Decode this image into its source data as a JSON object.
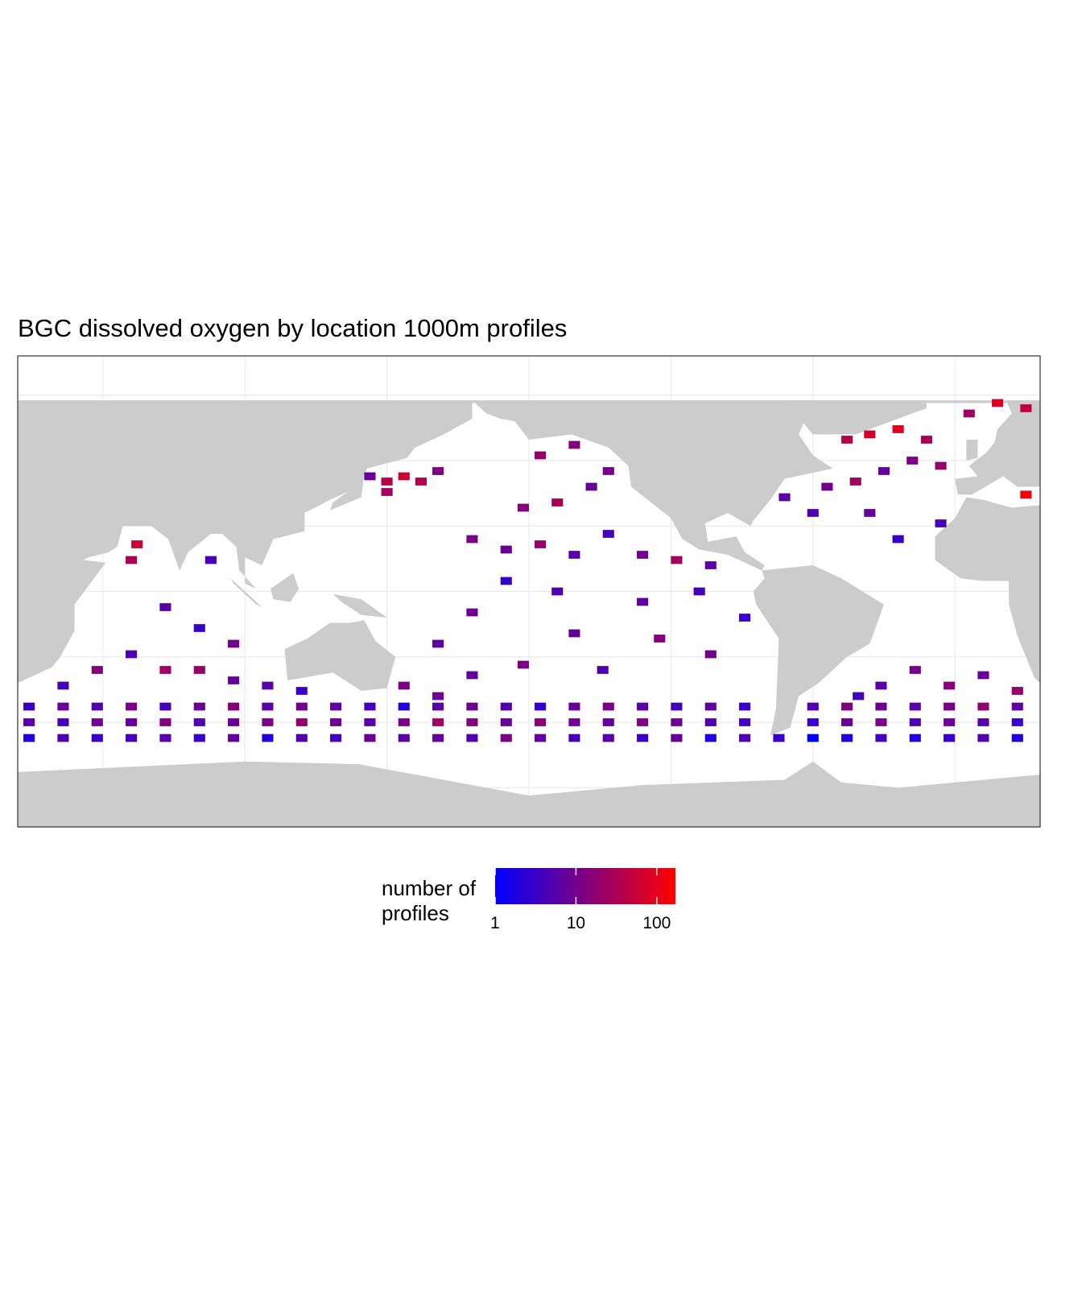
{
  "chart_data": {
    "type": "tile",
    "title": "BGC dissolved oxygen by location 1000m profiles",
    "legend_title": "number of profiles",
    "log_scale": true,
    "grid": true,
    "color_low": "#0000ff",
    "color_high": "#ff0000",
    "land_color": "#cccccc",
    "xlim": [
      20,
      380
    ],
    "ylim": [
      -90,
      90
    ],
    "xticks": [
      50,
      100,
      150,
      200,
      250,
      300,
      350
    ],
    "yticks": [
      -75,
      -50,
      -25,
      0,
      25,
      50,
      75
    ],
    "colorlim": [
      1,
      170
    ],
    "colorticks": [
      1,
      10,
      100
    ],
    "x": [
      24,
      36,
      48,
      60,
      72,
      84,
      96,
      108,
      120,
      132,
      144,
      156,
      168,
      180,
      192,
      204,
      216,
      228,
      240,
      252,
      264,
      276,
      300,
      312,
      324,
      336,
      348,
      360,
      372,
      24,
      36,
      48,
      60,
      72,
      84,
      96,
      108,
      120,
      132,
      144,
      156,
      168,
      180,
      192,
      204,
      216,
      228,
      240,
      252,
      264,
      276,
      300,
      312,
      324,
      336,
      348,
      360,
      372,
      24,
      36,
      48,
      60,
      72,
      84,
      96,
      108,
      120,
      132,
      144,
      156,
      168,
      180,
      192,
      204,
      216,
      228,
      240,
      252,
      264,
      276,
      288,
      300,
      312,
      324,
      336,
      348,
      360,
      372,
      150,
      156,
      162,
      150,
      168,
      144,
      204,
      216,
      228,
      222,
      198,
      210,
      180,
      192,
      204,
      216,
      228,
      240,
      252,
      264,
      192,
      210,
      240,
      260,
      180,
      168,
      216,
      246,
      264,
      276,
      198,
      226,
      180,
      62,
      60,
      88,
      72,
      84,
      96,
      60,
      48,
      72,
      84,
      96,
      36,
      108,
      120,
      305,
      315,
      325,
      312,
      320,
      330,
      340,
      335,
      345,
      290,
      300,
      320,
      330,
      345,
      355,
      365,
      375,
      375,
      336,
      348,
      360,
      324,
      372,
      316,
      156,
      168
    ],
    "y": [
      -44,
      -44,
      -44,
      -44,
      -44,
      -44,
      -44,
      -44,
      -44,
      -44,
      -44,
      -44,
      -44,
      -44,
      -44,
      -44,
      -44,
      -44,
      -44,
      -44,
      -44,
      -44,
      -44,
      -44,
      -44,
      -44,
      -44,
      -44,
      -44,
      -50,
      -50,
      -50,
      -50,
      -50,
      -50,
      -50,
      -50,
      -50,
      -50,
      -50,
      -50,
      -50,
      -50,
      -50,
      -50,
      -50,
      -50,
      -50,
      -50,
      -50,
      -50,
      -50,
      -50,
      -50,
      -50,
      -50,
      -50,
      -50,
      -56,
      -56,
      -56,
      -56,
      -56,
      -56,
      -56,
      -56,
      -56,
      -56,
      -56,
      -56,
      -56,
      -56,
      -56,
      -56,
      -56,
      -56,
      -56,
      -56,
      -56,
      -56,
      -56,
      -56,
      -56,
      -56,
      -56,
      -56,
      -56,
      -56,
      42,
      44,
      42,
      38,
      46,
      44,
      52,
      56,
      46,
      40,
      32,
      34,
      20,
      16,
      18,
      14,
      22,
      14,
      12,
      10,
      4,
      0,
      -4,
      0,
      -8,
      -20,
      -16,
      -18,
      -24,
      -10,
      -28,
      -30,
      -32,
      18,
      12,
      12,
      -6,
      -14,
      -20,
      -24,
      -30,
      -30,
      -30,
      -34,
      -36,
      -36,
      -38,
      40,
      42,
      46,
      58,
      60,
      62,
      58,
      50,
      48,
      36,
      30,
      30,
      20,
      26,
      68,
      72,
      70,
      37,
      -30,
      -36,
      -32,
      -36,
      -38,
      -40,
      -36,
      -40
    ],
    "values": [
      3,
      8,
      5,
      12,
      4,
      9,
      15,
      6,
      10,
      7,
      4,
      2,
      6,
      9,
      5,
      3,
      8,
      12,
      6,
      4,
      7,
      3,
      5,
      14,
      9,
      6,
      11,
      18,
      7,
      6,
      4,
      10,
      7,
      14,
      5,
      8,
      12,
      20,
      9,
      6,
      11,
      25,
      14,
      8,
      16,
      10,
      7,
      13,
      9,
      5,
      4,
      3,
      8,
      12,
      5,
      9,
      6,
      3,
      2,
      5,
      3,
      4,
      6,
      3,
      7,
      2,
      5,
      4,
      9,
      6,
      8,
      5,
      12,
      7,
      4,
      6,
      3,
      8,
      2,
      5,
      3,
      1,
      2,
      4,
      2,
      3,
      5,
      2,
      40,
      60,
      35,
      25,
      12,
      8,
      20,
      15,
      10,
      8,
      15,
      30,
      12,
      8,
      20,
      6,
      4,
      10,
      25,
      6,
      3,
      5,
      7,
      4,
      9,
      6,
      8,
      14,
      10,
      3,
      12,
      5,
      7,
      60,
      30,
      4,
      6,
      3,
      10,
      5,
      14,
      25,
      20,
      8,
      4,
      6,
      3,
      10,
      25,
      8,
      40,
      70,
      90,
      30,
      12,
      20,
      6,
      5,
      8,
      3,
      4,
      25,
      80,
      50,
      150,
      10,
      15,
      8,
      6,
      20,
      4,
      12,
      9
    ]
  }
}
